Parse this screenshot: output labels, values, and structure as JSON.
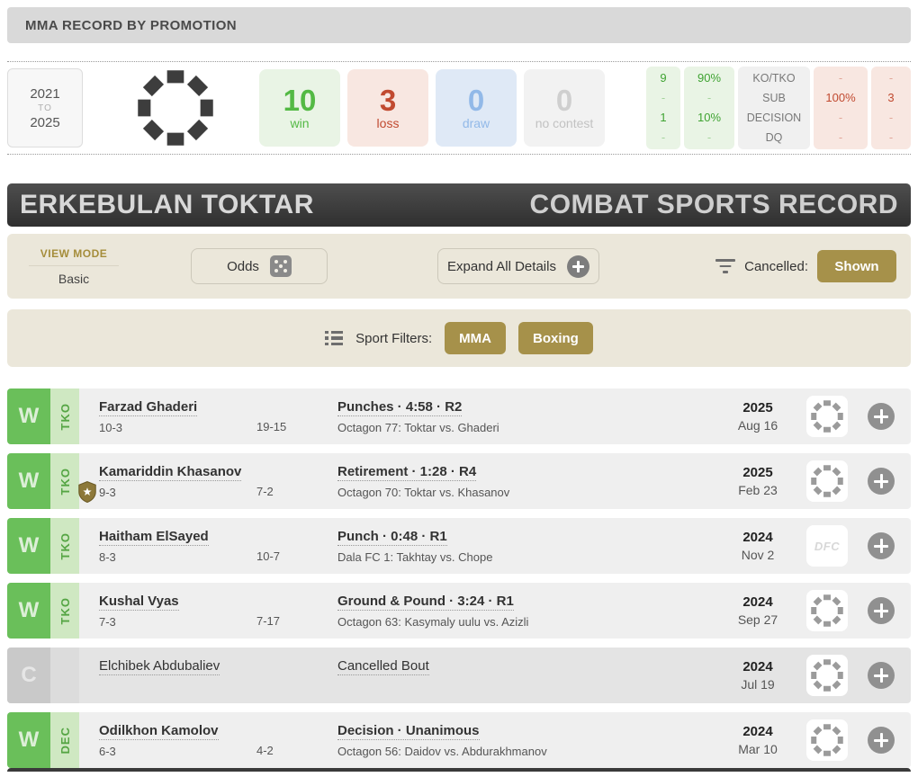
{
  "header": {
    "title": "MMA RECORD BY PROMOTION"
  },
  "promo_summary": {
    "year_from": "2021",
    "year_to_label": "TO",
    "year_to": "2025",
    "stats": {
      "win": {
        "value": "10",
        "label": "win"
      },
      "loss": {
        "value": "3",
        "label": "loss"
      },
      "draw": {
        "value": "0",
        "label": "draw"
      },
      "nc": {
        "value": "0",
        "label": "no contest"
      }
    },
    "breakdown": {
      "win_counts": [
        "9",
        "-",
        "1",
        "-"
      ],
      "win_pcts": [
        "90%",
        "-",
        "10%",
        "-"
      ],
      "methods": [
        "KO/TKO",
        "SUB",
        "DECISION",
        "DQ"
      ],
      "loss_pcts": [
        "-",
        "100%",
        "-",
        "-"
      ],
      "loss_counts": [
        "-",
        "3",
        "-",
        "-"
      ]
    }
  },
  "banner": {
    "fighter_name": "ERKEBULAN TOKTAR",
    "section_title": "COMBAT SPORTS RECORD"
  },
  "controls": {
    "view_mode_label": "VIEW MODE",
    "view_mode_value": "Basic",
    "odds_label": "Odds",
    "expand_label": "Expand All Details",
    "cancelled_label": "Cancelled:",
    "cancelled_value": "Shown"
  },
  "sport_filters": {
    "label": "Sport Filters:",
    "filters": [
      "MMA",
      "Boxing"
    ]
  },
  "colors": {
    "accent_gold": "#a6914a",
    "win_green": "#6abf5a",
    "loss_red": "#c14a30"
  },
  "fights": [
    {
      "result": "W",
      "method_tag": "TKO",
      "opponent": "Farzad Ghaderi",
      "record": "10-3",
      "opp_record": "19-15",
      "method": "Punches · 4:58 · R2",
      "event": "Octagon 77: Toktar vs. Ghaderi",
      "year": "2025",
      "date": "Aug 16",
      "logo": "octagon",
      "title_fight": false,
      "cancelled": false
    },
    {
      "result": "W",
      "method_tag": "TKO",
      "opponent": "Kamariddin Khasanov",
      "record": "9-3",
      "opp_record": "7-2",
      "method": "Retirement · 1:28 · R4",
      "event": "Octagon 70: Toktar vs. Khasanov",
      "year": "2025",
      "date": "Feb 23",
      "logo": "octagon",
      "title_fight": true,
      "cancelled": false
    },
    {
      "result": "W",
      "method_tag": "TKO",
      "opponent": "Haitham ElSayed",
      "record": "8-3",
      "opp_record": "10-7",
      "method": "Punch · 0:48 · R1",
      "event": "Dala FC 1: Takhtay vs. Chope",
      "year": "2024",
      "date": "Nov 2",
      "logo": "dfc",
      "logo_text": "DFC",
      "title_fight": false,
      "cancelled": false
    },
    {
      "result": "W",
      "method_tag": "TKO",
      "opponent": "Kushal Vyas",
      "record": "7-3",
      "opp_record": "7-17",
      "method": "Ground & Pound · 3:24 · R1",
      "event": "Octagon 63: Kasymaly uulu vs. Azizli",
      "year": "2024",
      "date": "Sep 27",
      "logo": "octagon",
      "title_fight": false,
      "cancelled": false
    },
    {
      "result": "C",
      "method_tag": "",
      "opponent": "Elchibek Abdubaliev",
      "record": "",
      "opp_record": "",
      "method": "Cancelled Bout",
      "event": "",
      "year": "2024",
      "date": "Jul 19",
      "logo": "octagon",
      "title_fight": false,
      "cancelled": true
    },
    {
      "result": "W",
      "method_tag": "DEC",
      "opponent": "Odilkhon Kamolov",
      "record": "6-3",
      "opp_record": "4-2",
      "method": "Decision · Unanimous",
      "event": "Octagon 56: Daidov vs. Abdurakhmanov",
      "year": "2024",
      "date": "Mar 10",
      "logo": "octagon",
      "title_fight": false,
      "cancelled": false
    }
  ]
}
